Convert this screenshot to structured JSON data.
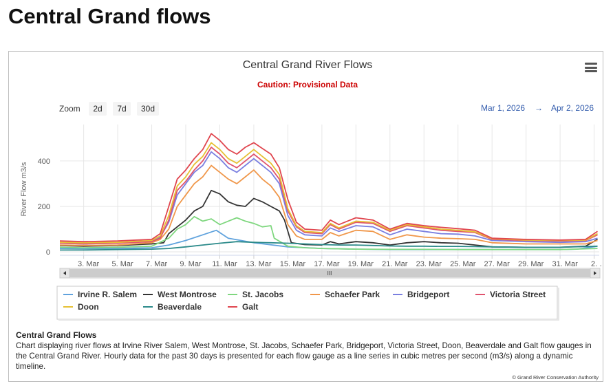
{
  "page": {
    "title": "Central Grand flows"
  },
  "chart": {
    "title": "Central Grand River Flows",
    "subtitle": "Caution: Provisional Data",
    "ylabel": "River Flow m3/s",
    "zoom_label": "Zoom",
    "zoom_buttons": [
      "2d",
      "7d",
      "30d"
    ],
    "range_from": "Mar 1, 2026",
    "range_arrow": "→",
    "range_to": "Apr 2, 2026",
    "scroll_grip": "III",
    "description_title": "Central Grand Flows",
    "description": "Chart displaying river flows at Irvine River Salem, West Montrose, St. Jacobs, Schaefer Park, Bridgeport, Victoria Street, Doon, Beaverdale and Galt flow gauges in the Central Grand River. Hourly data for the past 30 days is presented for each flow gauge as a line series in cubic metres per second (m3/s) along a dynamic timeline.",
    "credit": "© Grand River Conservation Authority",
    "menu_icon": "hamburger-icon"
  },
  "chart_data": {
    "type": "line",
    "xlabel": "",
    "ylabel": "River Flow m3/s",
    "x_ticks": [
      "3. Mar",
      "5. Mar",
      "7. Mar",
      "9. Mar",
      "11. Mar",
      "13. Mar",
      "15. Mar",
      "17. Mar",
      "19. Mar",
      "21. Mar",
      "23. Mar",
      "25. Mar",
      "27. Mar",
      "29. Mar",
      "31. Mar",
      "2. …"
    ],
    "y_ticks": [
      0,
      200,
      400
    ],
    "xlim": [
      1.6,
      33.3
    ],
    "ylim": [
      -15,
      560
    ],
    "grid": true,
    "legend_position": "bottom",
    "series": [
      {
        "name": "Irvine R. Salem",
        "color": "#5fa2dd",
        "points": [
          [
            1.6,
            15
          ],
          [
            3,
            14
          ],
          [
            5,
            15
          ],
          [
            7,
            18
          ],
          [
            8,
            30
          ],
          [
            9,
            50
          ],
          [
            10,
            75
          ],
          [
            10.8,
            95
          ],
          [
            11.5,
            60
          ],
          [
            13,
            40
          ],
          [
            15,
            22
          ],
          [
            17,
            15
          ],
          [
            19,
            12
          ],
          [
            21,
            10
          ],
          [
            23,
            10
          ],
          [
            25,
            10
          ],
          [
            27,
            10
          ],
          [
            29,
            10
          ],
          [
            31,
            10
          ],
          [
            32,
            12
          ],
          [
            33.2,
            25
          ]
        ]
      },
      {
        "name": "West Montrose",
        "color": "#333333",
        "points": [
          [
            1.6,
            28
          ],
          [
            3,
            25
          ],
          [
            5,
            28
          ],
          [
            7,
            35
          ],
          [
            7.7,
            40
          ],
          [
            8,
            80
          ],
          [
            8.5,
            110
          ],
          [
            9,
            140
          ],
          [
            9.5,
            180
          ],
          [
            10,
            200
          ],
          [
            10.5,
            270
          ],
          [
            11,
            255
          ],
          [
            11.5,
            220
          ],
          [
            12,
            205
          ],
          [
            12.5,
            200
          ],
          [
            13,
            235
          ],
          [
            13.5,
            220
          ],
          [
            14,
            200
          ],
          [
            14.5,
            180
          ],
          [
            14.8,
            140
          ],
          [
            15.2,
            40
          ],
          [
            16,
            32
          ],
          [
            17,
            30
          ],
          [
            17.5,
            45
          ],
          [
            18,
            35
          ],
          [
            19,
            45
          ],
          [
            20,
            40
          ],
          [
            21,
            30
          ],
          [
            22,
            40
          ],
          [
            23,
            45
          ],
          [
            24,
            40
          ],
          [
            25,
            38
          ],
          [
            26,
            30
          ],
          [
            27,
            22
          ],
          [
            29,
            20
          ],
          [
            31,
            20
          ],
          [
            32.5,
            25
          ],
          [
            33.2,
            55
          ]
        ]
      },
      {
        "name": "St. Jacobs",
        "color": "#7fd77f",
        "points": [
          [
            1.6,
            20
          ],
          [
            3,
            18
          ],
          [
            5,
            20
          ],
          [
            7,
            25
          ],
          [
            8,
            60
          ],
          [
            8.5,
            100
          ],
          [
            9,
            120
          ],
          [
            9.5,
            155
          ],
          [
            10,
            135
          ],
          [
            10.5,
            145
          ],
          [
            11,
            120
          ],
          [
            11.5,
            135
          ],
          [
            12,
            150
          ],
          [
            12.5,
            135
          ],
          [
            13,
            125
          ],
          [
            13.5,
            110
          ],
          [
            14,
            115
          ],
          [
            14.2,
            60
          ],
          [
            15,
            25
          ],
          [
            16,
            18
          ],
          [
            17,
            15
          ],
          [
            19,
            12
          ],
          [
            21,
            11
          ],
          [
            23,
            11
          ],
          [
            25,
            10
          ],
          [
            27,
            10
          ],
          [
            29,
            10
          ],
          [
            31,
            10
          ],
          [
            33.2,
            15
          ]
        ]
      },
      {
        "name": "Schaefer Park",
        "color": "#f0974a",
        "points": [
          [
            1.6,
            30
          ],
          [
            3,
            28
          ],
          [
            5,
            30
          ],
          [
            7,
            40
          ],
          [
            7.5,
            55
          ],
          [
            8,
            100
          ],
          [
            8.5,
            200
          ],
          [
            9,
            250
          ],
          [
            9.5,
            300
          ],
          [
            10,
            330
          ],
          [
            10.5,
            380
          ],
          [
            11,
            350
          ],
          [
            11.5,
            320
          ],
          [
            12,
            300
          ],
          [
            12.5,
            330
          ],
          [
            13,
            360
          ],
          [
            13.5,
            320
          ],
          [
            14,
            290
          ],
          [
            14.5,
            240
          ],
          [
            15,
            120
          ],
          [
            15.5,
            70
          ],
          [
            16,
            55
          ],
          [
            17,
            55
          ],
          [
            17.5,
            85
          ],
          [
            18,
            70
          ],
          [
            19,
            95
          ],
          [
            20,
            90
          ],
          [
            21,
            55
          ],
          [
            22,
            75
          ],
          [
            23,
            65
          ],
          [
            24,
            60
          ],
          [
            25,
            58
          ],
          [
            26,
            55
          ],
          [
            27,
            40
          ],
          [
            29,
            35
          ],
          [
            31,
            35
          ],
          [
            32.5,
            35
          ],
          [
            33.2,
            50
          ]
        ]
      },
      {
        "name": "Bridgeport",
        "color": "#7a7fe0",
        "points": [
          [
            1.6,
            38
          ],
          [
            3,
            35
          ],
          [
            5,
            38
          ],
          [
            7,
            48
          ],
          [
            7.5,
            65
          ],
          [
            8,
            130
          ],
          [
            8.5,
            250
          ],
          [
            9,
            300
          ],
          [
            9.5,
            350
          ],
          [
            10,
            380
          ],
          [
            10.5,
            440
          ],
          [
            11,
            410
          ],
          [
            11.5,
            370
          ],
          [
            12,
            350
          ],
          [
            12.5,
            380
          ],
          [
            13,
            410
          ],
          [
            13.5,
            380
          ],
          [
            14,
            350
          ],
          [
            14.5,
            300
          ],
          [
            15,
            160
          ],
          [
            15.5,
            95
          ],
          [
            16,
            75
          ],
          [
            17,
            70
          ],
          [
            17.5,
            105
          ],
          [
            18,
            90
          ],
          [
            19,
            115
          ],
          [
            20,
            110
          ],
          [
            21,
            75
          ],
          [
            22,
            100
          ],
          [
            23,
            90
          ],
          [
            24,
            80
          ],
          [
            25,
            78
          ],
          [
            26,
            70
          ],
          [
            27,
            50
          ],
          [
            29,
            45
          ],
          [
            31,
            42
          ],
          [
            32.5,
            45
          ],
          [
            33.2,
            60
          ]
        ]
      },
      {
        "name": "Victoria Street",
        "color": "#e0536e",
        "points": [
          [
            1.6,
            38
          ],
          [
            3,
            35
          ],
          [
            5,
            38
          ],
          [
            7,
            45
          ],
          [
            7.5,
            60
          ],
          [
            8,
            140
          ],
          [
            8.5,
            270
          ],
          [
            9,
            310
          ],
          [
            9.5,
            360
          ],
          [
            10,
            400
          ],
          [
            10.5,
            460
          ],
          [
            11,
            430
          ],
          [
            11.5,
            390
          ],
          [
            12,
            370
          ],
          [
            12.5,
            400
          ],
          [
            13,
            430
          ],
          [
            13.5,
            400
          ],
          [
            14,
            370
          ],
          [
            14.5,
            320
          ],
          [
            15,
            180
          ],
          [
            15.5,
            110
          ],
          [
            16,
            85
          ],
          [
            17,
            80
          ],
          [
            17.5,
            120
          ],
          [
            18,
            100
          ],
          [
            19,
            130
          ],
          [
            20,
            125
          ],
          [
            21,
            90
          ],
          [
            22,
            115
          ],
          [
            23,
            105
          ],
          [
            24,
            95
          ],
          [
            25,
            90
          ],
          [
            26,
            85
          ],
          [
            27,
            55
          ],
          [
            29,
            50
          ],
          [
            31,
            48
          ],
          [
            32.5,
            50
          ],
          [
            33.2,
            75
          ]
        ]
      },
      {
        "name": "Doon",
        "color": "#e6c033",
        "points": [
          [
            1.6,
            42
          ],
          [
            3,
            40
          ],
          [
            5,
            42
          ],
          [
            7,
            50
          ],
          [
            7.5,
            70
          ],
          [
            8,
            160
          ],
          [
            8.5,
            290
          ],
          [
            9,
            330
          ],
          [
            9.5,
            385
          ],
          [
            10,
            420
          ],
          [
            10.5,
            480
          ],
          [
            11,
            450
          ],
          [
            11.5,
            410
          ],
          [
            12,
            390
          ],
          [
            12.5,
            420
          ],
          [
            13,
            450
          ],
          [
            13.5,
            420
          ],
          [
            14,
            390
          ],
          [
            14.5,
            340
          ],
          [
            15,
            190
          ],
          [
            15.5,
            115
          ],
          [
            16,
            90
          ],
          [
            17,
            85
          ],
          [
            17.5,
            125
          ],
          [
            18,
            105
          ],
          [
            19,
            135
          ],
          [
            20,
            130
          ],
          [
            21,
            95
          ],
          [
            22,
            120
          ],
          [
            23,
            110
          ],
          [
            24,
            100
          ],
          [
            25,
            95
          ],
          [
            26,
            88
          ],
          [
            27,
            58
          ],
          [
            29,
            52
          ],
          [
            31,
            50
          ],
          [
            32.5,
            52
          ],
          [
            33.2,
            80
          ]
        ]
      },
      {
        "name": "Beaverdale",
        "color": "#2b8a8a",
        "points": [
          [
            1.6,
            8
          ],
          [
            3,
            8
          ],
          [
            5,
            10
          ],
          [
            7,
            12
          ],
          [
            8,
            15
          ],
          [
            9,
            22
          ],
          [
            10,
            30
          ],
          [
            11,
            38
          ],
          [
            12,
            45
          ],
          [
            13,
            42
          ],
          [
            14,
            40
          ],
          [
            15,
            38
          ],
          [
            16,
            35
          ],
          [
            17,
            32
          ],
          [
            18,
            30
          ],
          [
            19,
            30
          ],
          [
            20,
            28
          ],
          [
            21,
            26
          ],
          [
            22,
            25
          ],
          [
            23,
            25
          ],
          [
            24,
            24
          ],
          [
            25,
            24
          ],
          [
            26,
            23
          ],
          [
            27,
            22
          ],
          [
            29,
            20
          ],
          [
            31,
            20
          ],
          [
            33.2,
            25
          ]
        ]
      },
      {
        "name": "Galt",
        "color": "#e0464f",
        "points": [
          [
            1.6,
            48
          ],
          [
            3,
            45
          ],
          [
            5,
            48
          ],
          [
            7,
            55
          ],
          [
            7.5,
            80
          ],
          [
            8,
            200
          ],
          [
            8.5,
            320
          ],
          [
            9,
            360
          ],
          [
            9.5,
            410
          ],
          [
            10,
            450
          ],
          [
            10.5,
            520
          ],
          [
            11,
            490
          ],
          [
            11.5,
            450
          ],
          [
            12,
            430
          ],
          [
            12.5,
            460
          ],
          [
            13,
            480
          ],
          [
            13.5,
            455
          ],
          [
            14,
            430
          ],
          [
            14.5,
            370
          ],
          [
            15,
            230
          ],
          [
            15.5,
            130
          ],
          [
            16,
            100
          ],
          [
            17,
            95
          ],
          [
            17.5,
            140
          ],
          [
            18,
            120
          ],
          [
            19,
            150
          ],
          [
            20,
            140
          ],
          [
            21,
            100
          ],
          [
            22,
            125
          ],
          [
            23,
            115
          ],
          [
            24,
            108
          ],
          [
            25,
            102
          ],
          [
            26,
            95
          ],
          [
            27,
            60
          ],
          [
            29,
            55
          ],
          [
            31,
            52
          ],
          [
            32.5,
            55
          ],
          [
            33.2,
            90
          ]
        ]
      }
    ]
  }
}
